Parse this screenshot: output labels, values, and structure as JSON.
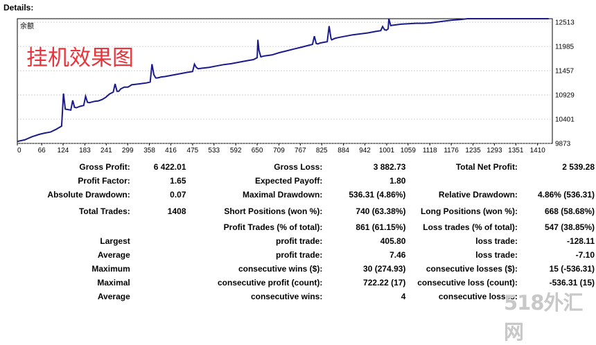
{
  "details_title": "Details:",
  "overlay_text": "挂机效果图",
  "watermark": "518外汇网",
  "colors": {
    "line": "#1a1a8c",
    "grid": "#a0a0a0",
    "overlay": "#e8343a"
  },
  "chart_data": {
    "type": "line",
    "legend": "余额",
    "x_ticks": [
      "0",
      "66",
      "124",
      "183",
      "241",
      "299",
      "358",
      "416",
      "475",
      "533",
      "592",
      "650",
      "709",
      "767",
      "825",
      "884",
      "942",
      "1001",
      "1059",
      "1118",
      "1176",
      "1235",
      "1293",
      "1351",
      "1410"
    ],
    "y_ticks": [
      "12513",
      "11985",
      "11457",
      "10929",
      "10401",
      "9873"
    ],
    "xlim": [
      0,
      1450
    ],
    "ylim": [
      9873,
      12590
    ],
    "x": [
      0,
      20,
      40,
      60,
      75,
      90,
      105,
      120,
      125,
      130,
      145,
      150,
      155,
      160,
      170,
      180,
      185,
      190,
      195,
      210,
      220,
      230,
      240,
      250,
      260,
      265,
      270,
      275,
      280,
      290,
      300,
      310,
      320,
      330,
      340,
      350,
      360,
      365,
      370,
      375,
      380,
      390,
      400,
      420,
      440,
      460,
      475,
      480,
      485,
      490,
      500,
      520,
      540,
      560,
      580,
      600,
      620,
      640,
      650,
      652,
      655,
      660,
      670,
      690,
      710,
      730,
      750,
      770,
      790,
      800,
      805,
      810,
      815,
      820,
      840,
      845,
      850,
      852,
      855,
      860,
      870,
      890,
      910,
      930,
      950,
      970,
      985,
      990,
      995,
      1000,
      1005,
      1007,
      1012,
      1020,
      1040,
      1060,
      1080,
      1100,
      1120,
      1140,
      1160,
      1180,
      1200,
      1220,
      1240,
      1260,
      1280,
      1300,
      1320,
      1340,
      1360,
      1380,
      1390,
      1400,
      1410,
      1420,
      1440
    ],
    "y": [
      9915,
      9950,
      10020,
      10070,
      10100,
      10120,
      10180,
      10250,
      10960,
      10620,
      10600,
      10810,
      10660,
      10650,
      10680,
      10700,
      10900,
      10770,
      10760,
      10790,
      10800,
      10830,
      10880,
      10950,
      10990,
      11170,
      11010,
      11010,
      11060,
      11100,
      11100,
      11150,
      11160,
      11170,
      11180,
      11190,
      11210,
      11600,
      11370,
      11300,
      11300,
      11320,
      11330,
      11360,
      11390,
      11420,
      11440,
      11600,
      11530,
      11500,
      11510,
      11530,
      11560,
      11590,
      11610,
      11640,
      11670,
      11700,
      11740,
      12130,
      11900,
      11760,
      11780,
      11800,
      11850,
      11890,
      11930,
      11970,
      12010,
      12030,
      12210,
      12050,
      12040,
      12060,
      12090,
      12430,
      12160,
      12130,
      12140,
      12160,
      12180,
      12210,
      12240,
      12260,
      12280,
      12310,
      12330,
      12420,
      12350,
      12340,
      12370,
      12600,
      12440,
      12450,
      12470,
      12480,
      12490,
      12490,
      12500,
      12520,
      12540,
      12560,
      12570,
      12590,
      12610,
      12630,
      12650,
      12680,
      12710,
      12730,
      12750,
      12780,
      12790,
      12810,
      12800,
      12790,
      12780
    ]
  },
  "stats": {
    "gross_profit": {
      "label": "Gross Profit:",
      "value": "6 422.01"
    },
    "gross_loss": {
      "label": "Gross Loss:",
      "value": "3 882.73"
    },
    "total_net_profit": {
      "label": "Total Net Profit:",
      "value": "2 539.28"
    },
    "profit_factor": {
      "label": "Profit Factor:",
      "value": "1.65"
    },
    "expected_payoff": {
      "label": "Expected Payoff:",
      "value": "1.80"
    },
    "absolute_drawdown": {
      "label": "Absolute Drawdown:",
      "value": "0.07"
    },
    "maximal_drawdown": {
      "label": "Maximal Drawdown:",
      "value": "536.31 (4.86%)"
    },
    "relative_drawdown": {
      "label": "Relative Drawdown:",
      "value": "4.86% (536.31)"
    },
    "total_trades": {
      "label": "Total Trades:",
      "value": "1408"
    },
    "short_positions": {
      "label": "Short Positions (won %):",
      "value": "740 (63.38%)"
    },
    "long_positions": {
      "label": "Long Positions (won %):",
      "value": "668 (58.68%)"
    },
    "profit_trades": {
      "label": "Profit Trades (% of total):",
      "value": "861 (61.15%)"
    },
    "loss_trades": {
      "label": "Loss trades (% of total):",
      "value": "547 (38.85%)"
    },
    "largest": {
      "label": "Largest",
      "profit_label": "profit trade:",
      "profit_value": "405.80",
      "loss_label": "loss trade:",
      "loss_value": "-128.11"
    },
    "average": {
      "label": "Average",
      "profit_label": "profit trade:",
      "profit_value": "7.46",
      "loss_label": "loss trade:",
      "loss_value": "-7.10"
    },
    "maximum": {
      "label": "Maximum",
      "profit_label": "consecutive wins ($):",
      "profit_value": "30 (274.93)",
      "loss_label": "consecutive losses ($):",
      "loss_value": "15 (-536.31)"
    },
    "maximal": {
      "label": "Maximal",
      "profit_label": "consecutive profit (count):",
      "profit_value": "722.22 (17)",
      "loss_label": "consecutive loss (count):",
      "loss_value": "-536.31 (15)"
    },
    "average_consec": {
      "label": "Average",
      "profit_label": "consecutive wins:",
      "profit_value": "4",
      "loss_label": "consecutive losses:",
      "loss_value": ""
    }
  }
}
